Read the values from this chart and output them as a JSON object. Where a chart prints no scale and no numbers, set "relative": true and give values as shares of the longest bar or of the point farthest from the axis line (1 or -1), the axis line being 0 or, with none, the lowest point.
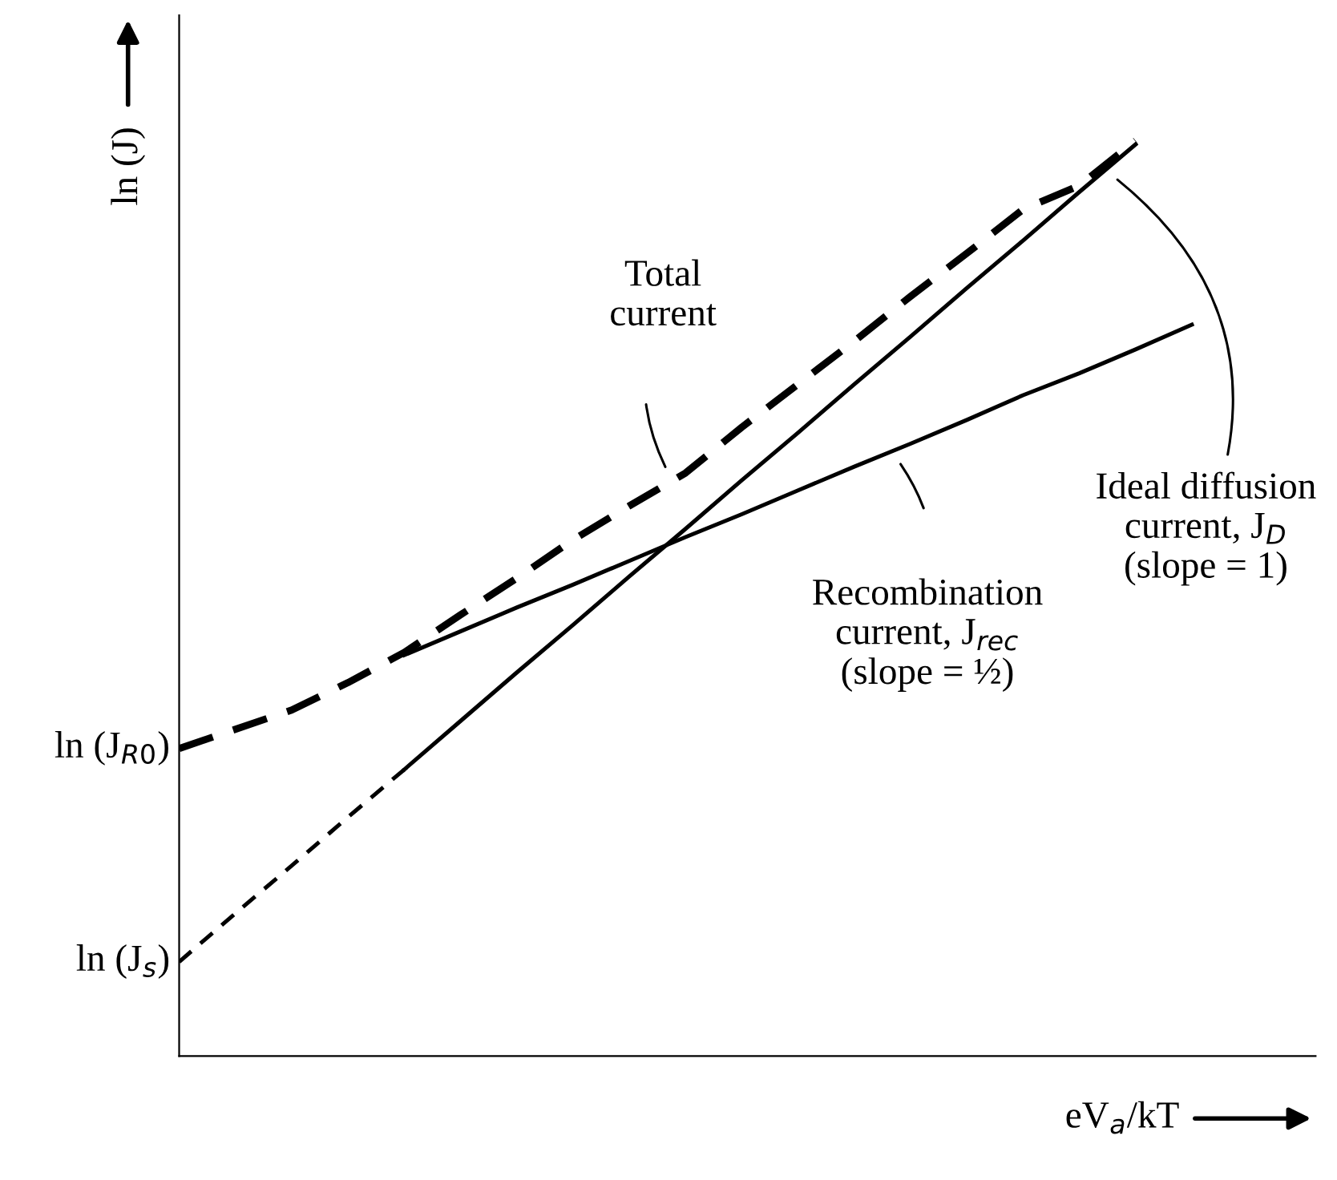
{
  "chart_data": {
    "type": "line",
    "relative": true,
    "ylabel": "ln (J)",
    "xlabel": "eV$_{a}$/kT",
    "categories": [
      null,
      null,
      null,
      null,
      null,
      null,
      null,
      null,
      null,
      null,
      null,
      null,
      null,
      null,
      null,
      null,
      null,
      null,
      null
    ],
    "series": [
      {
        "name": "Total\ncurrent",
        "color": "#000000",
        "line_style": "dashed",
        "values": [
          0.336,
          0.357,
          0.378,
          0.408,
          0.441,
          0.482,
          0.522,
          0.564,
          0.601,
          0.637,
          0.687,
          0.734,
          0.781,
          0.83,
          0.877,
          0.925,
          0.951,
          1,
          null
        ]
      },
      {
        "name": "Ideal diffusion\ncurrent, J$_{D}$\n(slope = 1)",
        "color": "#000000",
        "line_style": "solid",
        "values": [
          null,
          null,
          null,
          null,
          0.313,
          0.366,
          0.419,
          0.471,
          0.524,
          0.576,
          0.629,
          0.681,
          0.734,
          0.786,
          0.839,
          0.891,
          0.944,
          0.996,
          null
        ]
      },
      {
        "color": "#000000",
        "line_style": "dashed",
        "values": [
          0.103,
          0.156,
          0.208,
          0.261,
          0.313,
          null,
          null,
          null,
          null,
          null,
          null,
          null,
          null,
          null,
          null,
          null,
          null,
          null,
          null
        ]
      },
      {
        "name": "Recombination\ncurrent, J$_{rec}$\n(slope = ½)",
        "color": "#000000",
        "line_style": "solid",
        "values": [
          null,
          null,
          null,
          null,
          0.438,
          0.464,
          0.49,
          0.515,
          0.541,
          0.567,
          0.592,
          0.618,
          0.644,
          0.669,
          0.695,
          0.722,
          0.746,
          0.772,
          0.799
        ]
      }
    ],
    "annotations": [
      "ln (J$_{R0}$)",
      "ln (J$_{s}$)"
    ],
    "marker": "none"
  }
}
